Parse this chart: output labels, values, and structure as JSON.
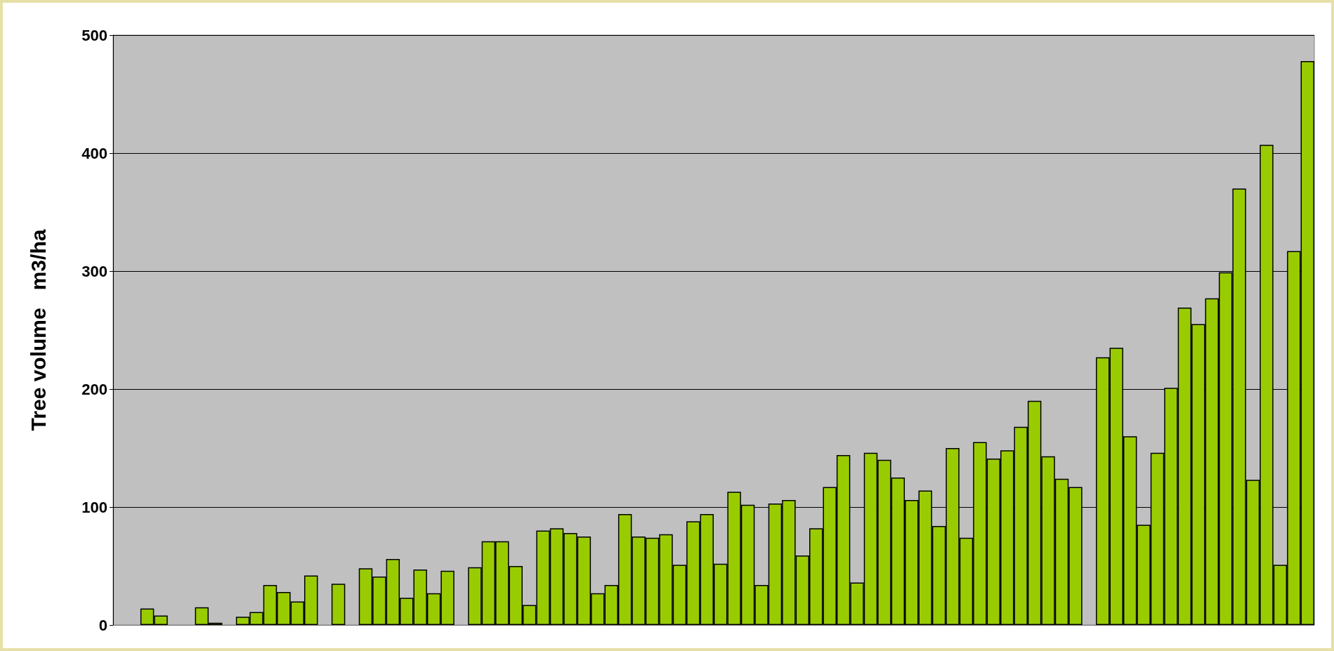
{
  "chart_data": {
    "type": "bar",
    "ylabel": "Tree volume   m3/ha",
    "categories": [
      null,
      null,
      null,
      null,
      null,
      null,
      null,
      null,
      null,
      null,
      null,
      null,
      null,
      null,
      null,
      null,
      null,
      null,
      null,
      null,
      null,
      null,
      null,
      null,
      null,
      null,
      null,
      null,
      null,
      null,
      null,
      null,
      null,
      null,
      null,
      null,
      null,
      null,
      null,
      null,
      null,
      null,
      null,
      null,
      null,
      null,
      null,
      null,
      null,
      null,
      null,
      null,
      null,
      null,
      null,
      null,
      null,
      null,
      null,
      null,
      null,
      null,
      null,
      null,
      null,
      null,
      null,
      null,
      null,
      null,
      null,
      null,
      null,
      null,
      null,
      null,
      null,
      null,
      null,
      null,
      null,
      null,
      null,
      null,
      null,
      null,
      null,
      null
    ],
    "values": [
      null,
      null,
      14,
      8,
      null,
      null,
      15,
      2,
      null,
      7,
      11,
      34,
      28,
      20,
      42,
      null,
      35,
      null,
      48,
      41,
      56,
      23,
      47,
      27,
      46,
      null,
      49,
      71,
      71,
      50,
      17,
      80,
      82,
      78,
      75,
      27,
      34,
      94,
      75,
      74,
      77,
      51,
      88,
      94,
      52,
      113,
      102,
      34,
      103,
      106,
      59,
      82,
      117,
      144,
      36,
      146,
      140,
      125,
      106,
      114,
      84,
      150,
      74,
      155,
      141,
      148,
      168,
      190,
      143,
      124,
      117,
      null,
      227,
      235,
      160,
      85,
      146,
      201,
      269,
      255,
      277,
      299,
      370,
      123,
      407,
      51,
      317,
      478
    ],
    "color": "#99cc00",
    "ylim": [
      0,
      500
    ],
    "yticks": [
      0,
      100,
      200,
      300,
      400,
      500
    ],
    "grid": "y"
  }
}
